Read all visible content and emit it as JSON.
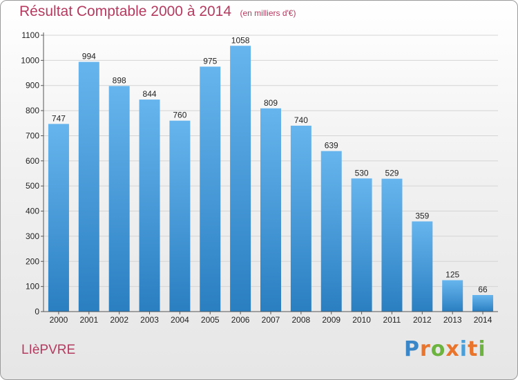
{
  "title": "Résultat Comptable 2000 à 2014",
  "subtitle": "(en milliers d'€)",
  "commune": "LIèPVRE",
  "logo": {
    "text": "Proxiti",
    "letter_colors": [
      "#3b86c6",
      "#e9742b",
      "#6db33f",
      "#e9742b",
      "#4a9fd8",
      "#e9742b",
      "#6db33f"
    ]
  },
  "colors": {
    "title": "#b53a5f",
    "bar_top": "#67b5ee",
    "bar_bottom": "#2a7fc1",
    "grid": "#d4d4d4"
  },
  "chart_data": {
    "type": "bar",
    "title": "Résultat Comptable 2000 à 2014",
    "subtitle": "(en milliers d'€)",
    "categories": [
      "2000",
      "2001",
      "2002",
      "2003",
      "2004",
      "2005",
      "2006",
      "2007",
      "2008",
      "2009",
      "2010",
      "2011",
      "2012",
      "2013",
      "2014"
    ],
    "values": [
      747,
      994,
      898,
      844,
      760,
      975,
      1058,
      809,
      740,
      639,
      530,
      529,
      359,
      125,
      66
    ],
    "data_labels": [
      "747",
      "994",
      "898",
      "844",
      "760",
      "975",
      "1058",
      "809",
      "740",
      "639",
      "530",
      "529",
      "359",
      "125",
      "66"
    ],
    "ylim": [
      0,
      1100
    ],
    "yticks": [
      0,
      100,
      200,
      300,
      400,
      500,
      600,
      700,
      800,
      900,
      1000,
      1100
    ],
    "grid": true,
    "legend": "none",
    "xlabel": "",
    "ylabel": ""
  }
}
